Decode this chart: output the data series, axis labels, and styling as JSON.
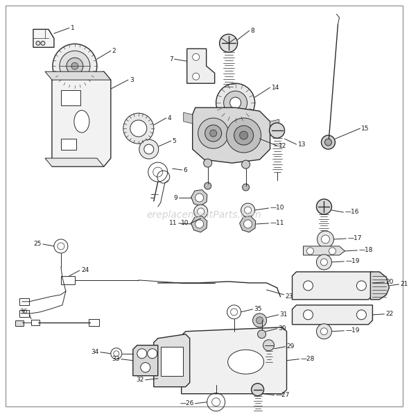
{
  "bg_color": "#ffffff",
  "line_color": "#2a2a2a",
  "label_color": "#1a1a1a",
  "watermark": "ereplacementParts.com",
  "watermark_color": "#cccccc",
  "border_color": "#bbbbbb",
  "figsize": [
    5.9,
    5.94
  ],
  "dpi": 100,
  "lw_thick": 1.0,
  "lw_med": 0.7,
  "lw_thin": 0.5,
  "label_fontsize": 6.5
}
